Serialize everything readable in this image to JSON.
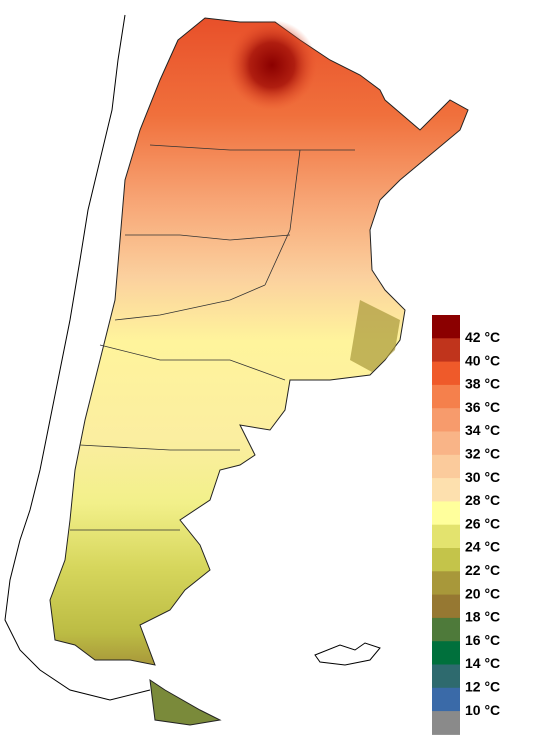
{
  "legend": {
    "colors": [
      "#8b0000",
      "#c0341c",
      "#ef5a2a",
      "#f5804c",
      "#f79b6c",
      "#f9b487",
      "#fbcb9c",
      "#fde0ae",
      "#ffff9c",
      "#e3e36e",
      "#c4c44a",
      "#a8983a",
      "#967832",
      "#4e7a3a",
      "#00703c",
      "#2e6a6e",
      "#3a6aa8",
      "#8a8a8a"
    ],
    "labels": [
      "42 °C",
      "40 °C",
      "38 °C",
      "36 °C",
      "34 °C",
      "32 °C",
      "30 °C",
      "28 °C",
      "26 °C",
      "24 °C",
      "22 °C",
      "20 °C",
      "18 °C",
      "16 °C",
      "14 °C",
      "12 °C",
      "10 °C"
    ]
  }
}
